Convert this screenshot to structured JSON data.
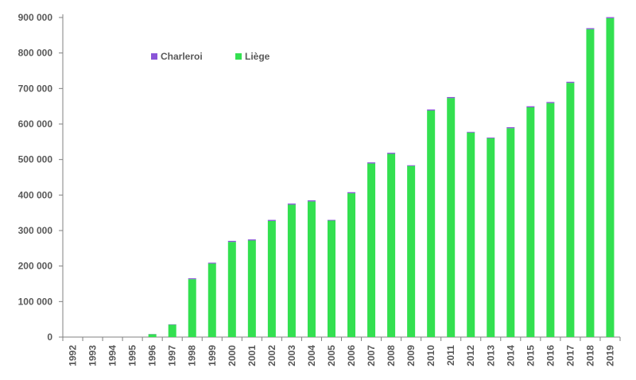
{
  "chart_data": {
    "type": "bar",
    "stacked": true,
    "categories": [
      "1992",
      "1993",
      "1994",
      "1995",
      "1996",
      "1997",
      "1998",
      "1999",
      "2000",
      "2001",
      "2002",
      "2003",
      "2004",
      "2005",
      "2006",
      "2007",
      "2008",
      "2009",
      "2010",
      "2011",
      "2012",
      "2013",
      "2014",
      "2015",
      "2016",
      "2017",
      "2018",
      "2019"
    ],
    "series": [
      {
        "name": "Liège",
        "color": "#33e050",
        "values": [
          0,
          0,
          0,
          0,
          8000,
          35000,
          163000,
          207000,
          268000,
          272000,
          327000,
          373000,
          382000,
          328000,
          405000,
          489000,
          516000,
          482000,
          638000,
          673000,
          576000,
          560000,
          588000,
          647000,
          659000,
          716000,
          867000,
          898000
        ]
      },
      {
        "name": "Charleroi",
        "color": "#8a55d8",
        "values": [
          0,
          0,
          0,
          0,
          500,
          1000,
          2500,
          2500,
          3000,
          3000,
          3000,
          3000,
          3000,
          2000,
          3000,
          3000,
          3000,
          2000,
          3000,
          3000,
          2000,
          2000,
          3000,
          3000,
          3000,
          3000,
          3000,
          3000
        ]
      }
    ],
    "legend_order": [
      "Charleroi",
      "Liège"
    ],
    "legend_position": "top-left",
    "y_ticks": [
      "0",
      "100 000",
      "200 000",
      "300 000",
      "400 000",
      "500 000",
      "600 000",
      "700 000",
      "800 000",
      "900 000"
    ],
    "ylim": [
      0,
      900000
    ],
    "grid": false
  }
}
